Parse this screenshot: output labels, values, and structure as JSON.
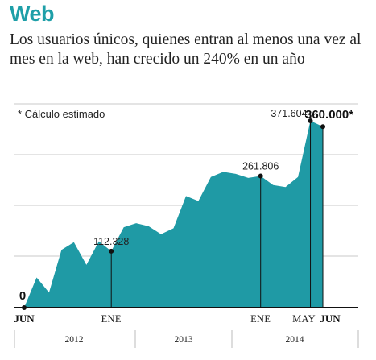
{
  "header": {
    "title": "Web",
    "subtitle": "Los usuarios únicos, quienes entran al menos una vez al mes en la web, han crecido un 240% en un año"
  },
  "chart_data": {
    "type": "area",
    "x": [
      "2012-06",
      "2012-07",
      "2012-08",
      "2012-09",
      "2012-10",
      "2012-11",
      "2012-12",
      "2013-01",
      "2013-02",
      "2013-03",
      "2013-04",
      "2013-05",
      "2013-06",
      "2013-07",
      "2013-08",
      "2013-09",
      "2013-10",
      "2013-11",
      "2013-12",
      "2014-01",
      "2014-02",
      "2014-03",
      "2014-04",
      "2014-05",
      "2014-06"
    ],
    "values": [
      0,
      60000,
      30000,
      115000,
      130000,
      85000,
      132000,
      112328,
      160000,
      168000,
      162000,
      146000,
      158000,
      222000,
      212000,
      260000,
      270000,
      266000,
      258000,
      261806,
      244000,
      240000,
      260000,
      371604,
      360000
    ],
    "ylim": [
      0,
      380000
    ],
    "note": "* Cálculo estimado",
    "annotations": [
      {
        "index": 0,
        "label": "0"
      },
      {
        "index": 7,
        "label": "112.328"
      },
      {
        "index": 19,
        "label": "261.806"
      },
      {
        "index": 23,
        "label": "371.604"
      },
      {
        "index": 24,
        "label": "360.000*"
      }
    ],
    "x_ticks": [
      {
        "index": 0,
        "label": "JUN"
      },
      {
        "index": 7,
        "label": "ENE"
      },
      {
        "index": 19,
        "label": "ENE"
      },
      {
        "index": 23,
        "label": "MAY"
      },
      {
        "index": 24,
        "label": "JUN"
      }
    ],
    "years": [
      "2012",
      "2013",
      "2014"
    ],
    "grid": true,
    "colors": {
      "fill": "#1f9aa5",
      "grid": "#c8c8c8",
      "axis": "#111111",
      "title": "#1e9fa8"
    }
  }
}
